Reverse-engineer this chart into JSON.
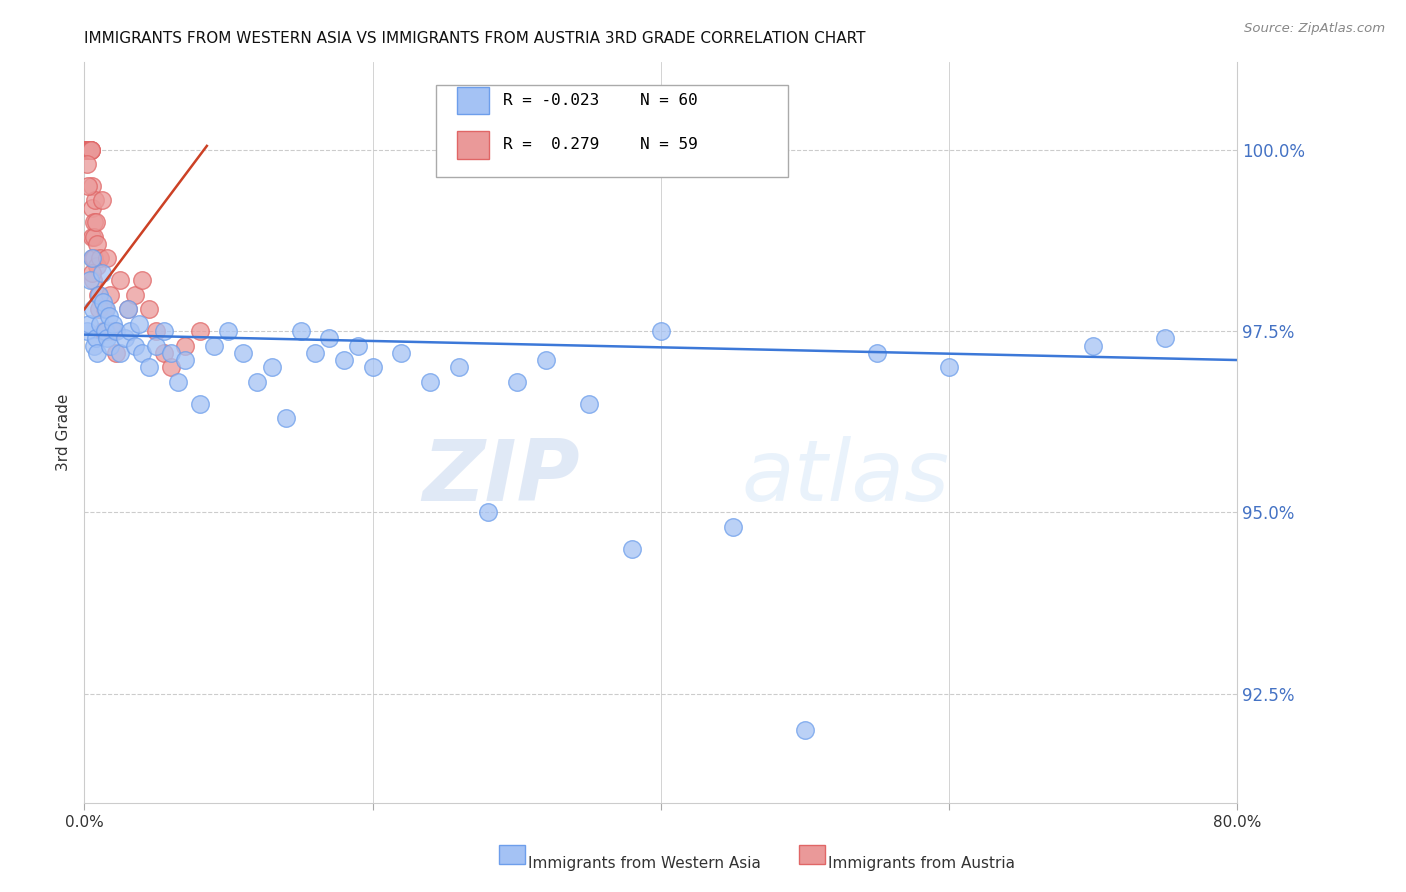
{
  "title": "IMMIGRANTS FROM WESTERN ASIA VS IMMIGRANTS FROM AUSTRIA 3RD GRADE CORRELATION CHART",
  "source": "Source: ZipAtlas.com",
  "ylabel": "3rd Grade",
  "xlim": [
    0.0,
    80.0
  ],
  "ylim": [
    91.0,
    101.2
  ],
  "yticks": [
    92.5,
    95.0,
    97.5,
    100.0
  ],
  "ytick_labels": [
    "92.5%",
    "95.0%",
    "97.5%",
    "100.0%"
  ],
  "blue_color": "#a4c2f4",
  "blue_edge_color": "#6d9eeb",
  "pink_color": "#ea9999",
  "pink_edge_color": "#e06666",
  "trend_blue_color": "#3c78d8",
  "trend_pink_color": "#cc4125",
  "legend_R_blue": "R = -0.023",
  "legend_N_blue": "N = 60",
  "legend_R_pink": "R =  0.279",
  "legend_N_pink": "N = 59",
  "legend_label_blue": "Immigrants from Western Asia",
  "legend_label_pink": "Immigrants from Austria",
  "watermark_zip": "ZIP",
  "watermark_atlas": "atlas",
  "blue_x": [
    0.2,
    0.3,
    0.4,
    0.5,
    0.6,
    0.7,
    0.8,
    0.9,
    1.0,
    1.1,
    1.2,
    1.3,
    1.4,
    1.5,
    1.6,
    1.7,
    1.8,
    2.0,
    2.2,
    2.5,
    2.8,
    3.0,
    3.2,
    3.5,
    3.8,
    4.0,
    4.5,
    5.0,
    5.5,
    6.0,
    6.5,
    7.0,
    8.0,
    9.0,
    10.0,
    11.0,
    12.0,
    13.0,
    14.0,
    15.0,
    16.0,
    17.0,
    18.0,
    19.0,
    20.0,
    22.0,
    24.0,
    26.0,
    28.0,
    30.0,
    32.0,
    35.0,
    38.0,
    40.0,
    45.0,
    50.0,
    55.0,
    60.0,
    70.0,
    75.0
  ],
  "blue_y": [
    97.5,
    97.6,
    98.2,
    98.5,
    97.8,
    97.3,
    97.4,
    97.2,
    98.0,
    97.6,
    98.3,
    97.9,
    97.5,
    97.8,
    97.4,
    97.7,
    97.3,
    97.6,
    97.5,
    97.2,
    97.4,
    97.8,
    97.5,
    97.3,
    97.6,
    97.2,
    97.0,
    97.3,
    97.5,
    97.2,
    96.8,
    97.1,
    96.5,
    97.3,
    97.5,
    97.2,
    96.8,
    97.0,
    96.3,
    97.5,
    97.2,
    97.4,
    97.1,
    97.3,
    97.0,
    97.2,
    96.8,
    97.0,
    95.0,
    96.8,
    97.1,
    96.5,
    94.5,
    97.5,
    94.8,
    92.0,
    97.2,
    97.0,
    97.3,
    97.4
  ],
  "pink_x": [
    0.05,
    0.08,
    0.1,
    0.12,
    0.14,
    0.16,
    0.18,
    0.2,
    0.22,
    0.24,
    0.26,
    0.28,
    0.3,
    0.32,
    0.34,
    0.36,
    0.38,
    0.4,
    0.42,
    0.44,
    0.46,
    0.48,
    0.5,
    0.52,
    0.55,
    0.58,
    0.6,
    0.62,
    0.65,
    0.68,
    0.7,
    0.75,
    0.8,
    0.85,
    0.9,
    0.95,
    1.0,
    1.1,
    1.2,
    1.3,
    1.4,
    1.5,
    1.6,
    1.8,
    2.0,
    2.2,
    2.5,
    3.0,
    3.5,
    4.0,
    4.5,
    5.0,
    5.5,
    6.0,
    7.0,
    8.0,
    0.15,
    0.25,
    0.5
  ],
  "pink_y": [
    100.0,
    100.0,
    100.0,
    100.0,
    100.0,
    100.0,
    100.0,
    100.0,
    100.0,
    100.0,
    100.0,
    100.0,
    100.0,
    100.0,
    100.0,
    100.0,
    100.0,
    100.0,
    100.0,
    100.0,
    100.0,
    100.0,
    99.5,
    99.2,
    98.8,
    98.5,
    98.2,
    98.5,
    99.0,
    98.8,
    98.5,
    99.3,
    99.0,
    98.7,
    98.4,
    98.0,
    97.8,
    98.5,
    99.3,
    97.5,
    97.8,
    97.5,
    98.5,
    98.0,
    97.5,
    97.2,
    98.2,
    97.8,
    98.0,
    98.2,
    97.8,
    97.5,
    97.2,
    97.0,
    97.3,
    97.5,
    99.8,
    99.5,
    98.3
  ],
  "blue_trend_x": [
    0.0,
    80.0
  ],
  "blue_trend_y": [
    97.45,
    97.1
  ],
  "pink_trend_x": [
    0.0,
    8.5
  ],
  "pink_trend_y": [
    97.8,
    100.05
  ]
}
